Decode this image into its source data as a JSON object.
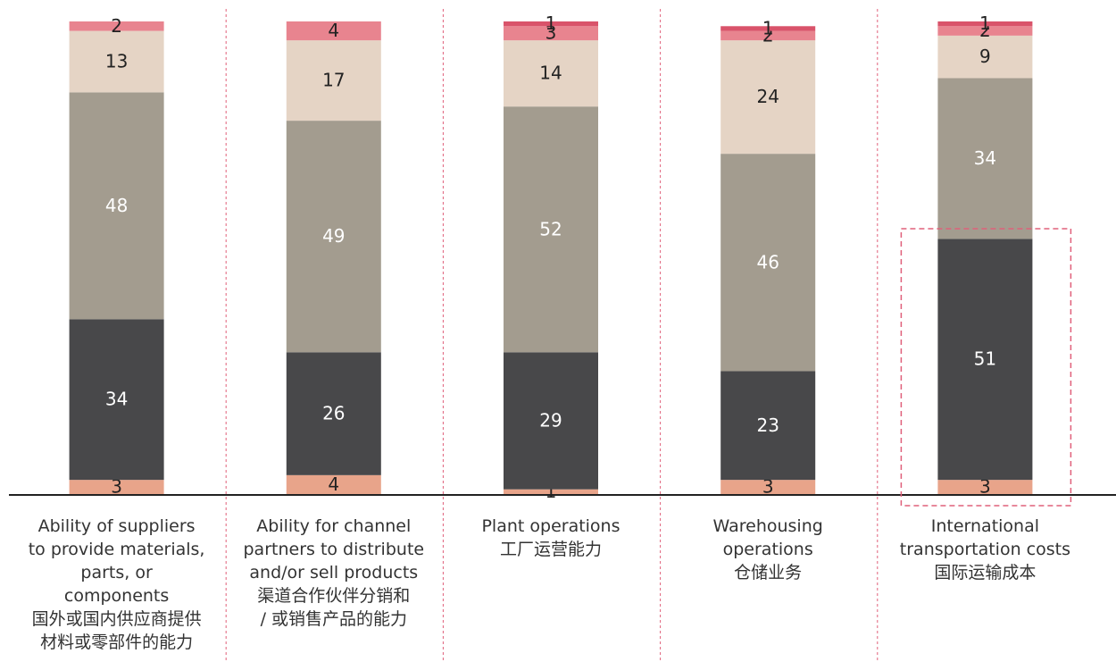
{
  "chart_data": {
    "type": "stacked-bar",
    "categories": [
      "Ability of suppliers\nto provide materials,\nparts, or\ncomponents\n国外或国内供应商提供\n材料或零部件的能力",
      "Ability for channel\npartners to distribute\nand/or sell products\n渠道合作伙伴分销和\n/ 或销售产品的能力",
      "Plant operations\n工厂运营能力",
      "Warehousing\noperations\n仓储业务",
      "International\ntransportation costs\n国际运输成本"
    ],
    "series": [
      {
        "color": "#e8a48a",
        "values": [
          3,
          4,
          1,
          3,
          3
        ]
      },
      {
        "color": "#48484a",
        "values": [
          34,
          26,
          29,
          23,
          51
        ]
      },
      {
        "color": "#a39c8f",
        "values": [
          48,
          49,
          52,
          46,
          34
        ]
      },
      {
        "color": "#e5d4c5",
        "values": [
          13,
          17,
          14,
          24,
          9
        ]
      },
      {
        "color": "#e8848f",
        "values": [
          2,
          4,
          3,
          2,
          2
        ]
      },
      {
        "color": "#d9536a",
        "values": [
          null,
          null,
          1,
          1,
          1
        ]
      }
    ],
    "ylim": [
      0,
      100
    ]
  }
}
